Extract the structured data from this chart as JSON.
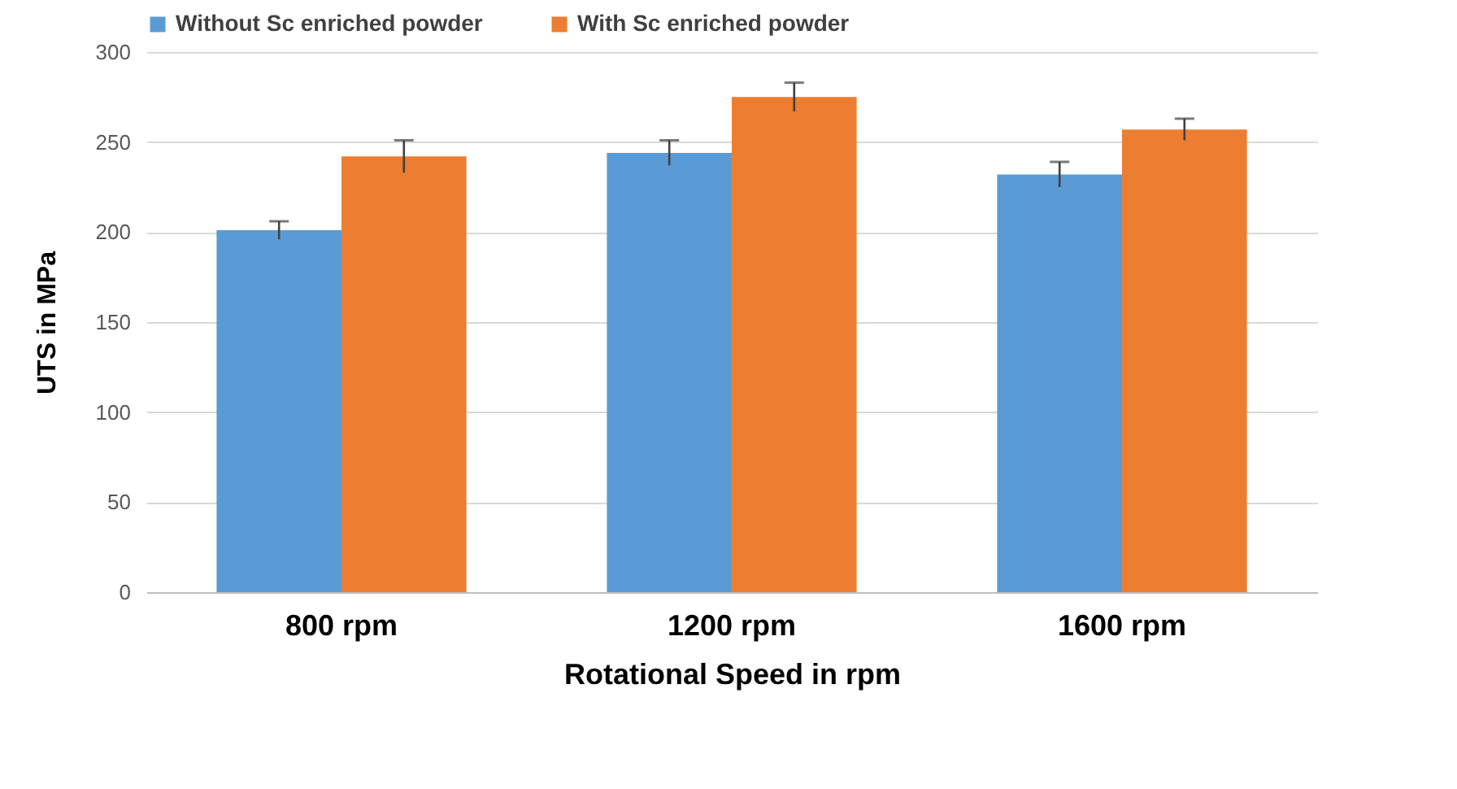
{
  "chart_data": {
    "type": "bar",
    "xlabel": "Rotational Speed in rpm",
    "ylabel": "UTS in MPa",
    "categories": [
      "800 rpm",
      "1200 rpm",
      "1600 rpm"
    ],
    "series": [
      {
        "name": "Without Sc enriched powder",
        "color": "#5b9bd5",
        "values": [
          201,
          244,
          232
        ],
        "errors": [
          5,
          7,
          7
        ]
      },
      {
        "name": "With Sc enriched powder",
        "color": "#ed7d31",
        "values": [
          242,
          275,
          257
        ],
        "errors": [
          9,
          8,
          6
        ]
      }
    ],
    "ylim": [
      0,
      300
    ],
    "yticks": [
      0,
      50,
      100,
      150,
      200,
      250,
      300
    ],
    "grid": "y",
    "legend": "top"
  }
}
